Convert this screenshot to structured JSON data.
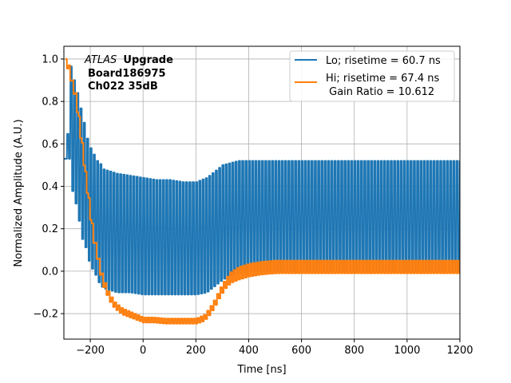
{
  "chart_data": {
    "type": "line",
    "title": "",
    "xlabel": "Time [ns]",
    "ylabel": "Normalized Amplitude (A.U.)",
    "xlim": [
      -300,
      1200
    ],
    "ylim": [
      -0.32,
      1.06
    ],
    "grid": true,
    "xticks": [
      -200,
      0,
      200,
      400,
      600,
      800,
      1000,
      1200
    ],
    "xtick_labels": [
      "−200",
      "0",
      "200",
      "400",
      "600",
      "800",
      "1000",
      "1200"
    ],
    "yticks": [
      -0.2,
      0.0,
      0.2,
      0.4,
      0.6,
      0.8,
      1.0
    ],
    "ytick_labels": [
      "−0.2",
      "0.0",
      "0.2",
      "0.4",
      "0.6",
      "0.8",
      "1.0"
    ],
    "annotation": {
      "italic": "ATLAS",
      "bold": "Upgrade",
      "line2": "Board186975",
      "line3": "Ch022 35dB"
    },
    "legend_position": "top-right",
    "series": [
      {
        "name": "Lo; risetime = 60.7 ns",
        "color": "#1f77b4",
        "style": "oscillating",
        "period_ns": 12.5,
        "upper_envelope": {
          "x": [
            -290,
            -280,
            -270,
            -260,
            -250,
            -240,
            -230,
            -220,
            -210,
            -200,
            -190,
            -180,
            -170,
            -160,
            -150,
            -100,
            -50,
            0,
            50,
            100,
            150,
            200,
            240,
            260,
            280,
            300,
            330,
            360,
            400,
            450,
            500,
            600,
            800,
            1000,
            1200
          ],
          "y": [
            0.53,
            1.0,
            0.93,
            0.89,
            0.84,
            0.78,
            0.73,
            0.67,
            0.61,
            0.58,
            0.56,
            0.52,
            0.52,
            0.5,
            0.48,
            0.46,
            0.45,
            0.44,
            0.43,
            0.43,
            0.42,
            0.42,
            0.44,
            0.46,
            0.48,
            0.5,
            0.51,
            0.52,
            0.52,
            0.52,
            0.52,
            0.52,
            0.52,
            0.52,
            0.52
          ]
        },
        "lower_envelope": {
          "x": [
            -290,
            -280,
            -270,
            -260,
            -250,
            -240,
            -230,
            -220,
            -210,
            -200,
            -190,
            -180,
            -170,
            -160,
            -150,
            -100,
            -50,
            0,
            50,
            100,
            150,
            200,
            240,
            260,
            280,
            300,
            330,
            360,
            400,
            450,
            500,
            600,
            800,
            1000,
            1200
          ],
          "y": [
            0.53,
            0.53,
            0.38,
            0.36,
            0.25,
            0.23,
            0.14,
            0.12,
            0.06,
            0.03,
            0.0,
            -0.02,
            -0.05,
            -0.07,
            -0.08,
            -0.1,
            -0.1,
            -0.11,
            -0.11,
            -0.11,
            -0.11,
            -0.11,
            -0.1,
            -0.08,
            -0.06,
            -0.04,
            -0.02,
            -0.01,
            0.0,
            0.0,
            0.0,
            0.0,
            0.0,
            0.0,
            0.0
          ]
        }
      },
      {
        "name": "Hi; risetime = 67.4 ns",
        "name_line2": " Gain Ratio = 10.612",
        "color": "#ff7f0e",
        "style": "stepped",
        "center": {
          "x": [
            -290,
            -280,
            -270,
            -260,
            -250,
            -240,
            -230,
            -220,
            -210,
            -200,
            -190,
            -180,
            -170,
            -160,
            -150,
            -140,
            -130,
            -120,
            -110,
            -100,
            -80,
            -60,
            -40,
            -20,
            0,
            40,
            80,
            120,
            160,
            200,
            230,
            250,
            270,
            290,
            310,
            330,
            360,
            400,
            450,
            500,
            600,
            800,
            1000,
            1200
          ],
          "y": [
            0.98,
            0.94,
            0.88,
            0.84,
            0.76,
            0.66,
            0.56,
            0.45,
            0.35,
            0.25,
            0.16,
            0.1,
            0.04,
            -0.02,
            -0.06,
            -0.09,
            -0.12,
            -0.14,
            -0.16,
            -0.17,
            -0.19,
            -0.2,
            -0.21,
            -0.22,
            -0.23,
            -0.23,
            -0.235,
            -0.235,
            -0.235,
            -0.235,
            -0.22,
            -0.19,
            -0.15,
            -0.1,
            -0.06,
            -0.03,
            -0.01,
            0.005,
            0.015,
            0.02,
            0.02,
            0.02,
            0.02,
            0.02
          ]
        },
        "ripple": {
          "x": [
            -290,
            -150,
            -100,
            0,
            200,
            300,
            360,
            400,
            500,
            800,
            1200
          ],
          "y": [
            0.02,
            0.02,
            0.015,
            0.012,
            0.012,
            0.02,
            0.03,
            0.03,
            0.03,
            0.03,
            0.03
          ]
        }
      }
    ]
  }
}
